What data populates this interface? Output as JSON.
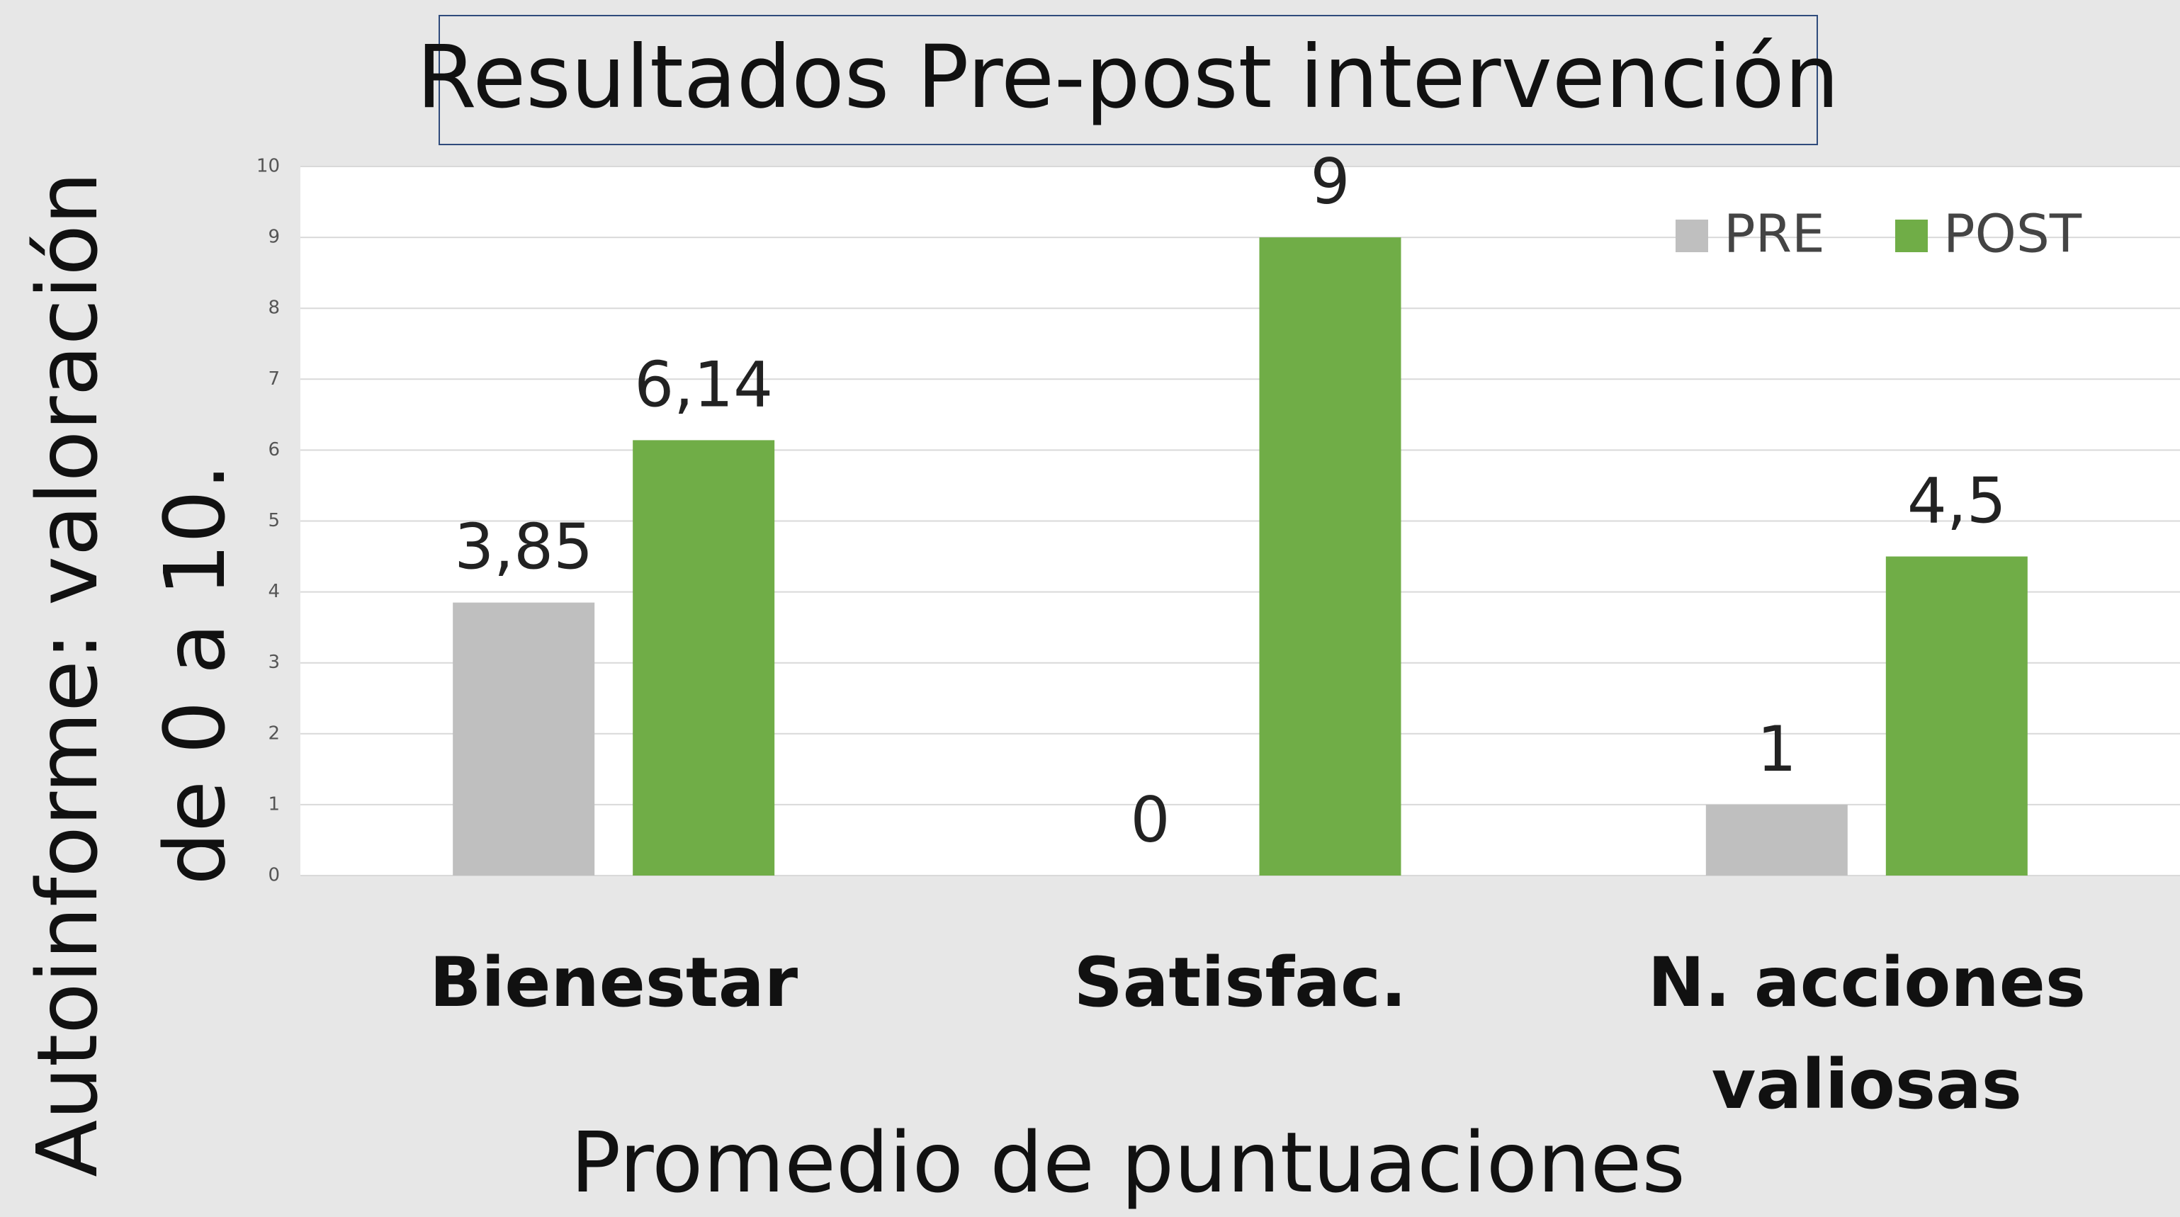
{
  "chart_data": {
    "type": "bar",
    "title": "Resultados Pre-post intervención",
    "x_label": "Promedio de puntuaciones",
    "y_label": "Autoinforme: valoración de 0 a 10.",
    "categories": [
      "Bienestar",
      "Satisfac.",
      "N. acciones valiosas"
    ],
    "series": [
      {
        "name": "PRE",
        "color": "#bfbfbf",
        "values": [
          3.85,
          0,
          1
        ],
        "value_labels": [
          "3,85",
          "0",
          "1"
        ]
      },
      {
        "name": "POST",
        "color": "#70ad47",
        "values": [
          6.14,
          9,
          4.5
        ],
        "value_labels": [
          "6,14",
          "9",
          "4,5"
        ]
      }
    ],
    "ylim": [
      0,
      10
    ],
    "yticks": [
      0,
      1,
      2,
      3,
      4,
      5,
      6,
      7,
      8,
      9,
      10
    ],
    "grid": true,
    "legend": "upper right"
  }
}
